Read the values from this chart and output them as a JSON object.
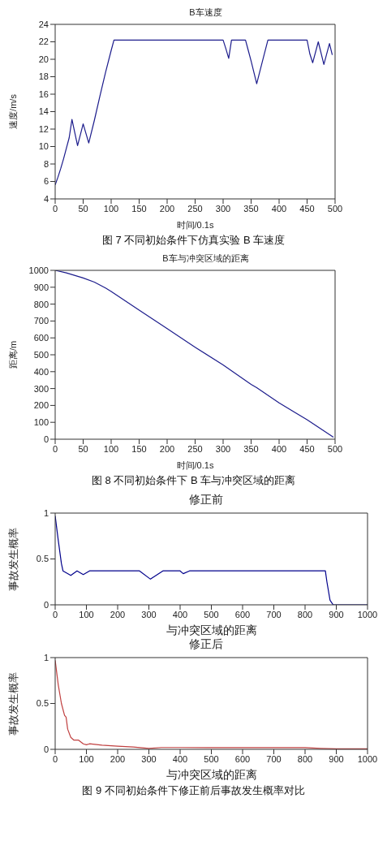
{
  "chart_data": [
    {
      "type": "line",
      "title": "B车速度",
      "xlabel": "时间/0.1s",
      "ylabel": "速度/m/s",
      "x": [
        0,
        5,
        10,
        15,
        20,
        25,
        30,
        40,
        50,
        60,
        70,
        80,
        90,
        100,
        105,
        300,
        305,
        310,
        315,
        340,
        345,
        350,
        360,
        370,
        380,
        450,
        455,
        460,
        470,
        480,
        490,
        495
      ],
      "series": [
        {
          "color": "#1c1c8c",
          "values": [
            5.6,
            6.5,
            7.5,
            8.6,
            9.8,
            11,
            13.1,
            10.1,
            12.6,
            10.4,
            13,
            15.8,
            18.5,
            21,
            22.2,
            22.2,
            21.2,
            20.1,
            22.2,
            22.2,
            21,
            19.8,
            17.2,
            19.7,
            22.2,
            22.2,
            20.6,
            19.6,
            22,
            19.4,
            21.8,
            20.5
          ]
        }
      ],
      "xlim": [
        0,
        500
      ],
      "xticks": [
        0,
        50,
        100,
        150,
        200,
        250,
        300,
        350,
        400,
        450,
        500
      ],
      "ylim": [
        4,
        24
      ],
      "yticks": [
        4,
        6,
        8,
        10,
        12,
        14,
        16,
        18,
        20,
        22,
        24
      ],
      "grid": false,
      "legend": false,
      "marker": "none",
      "line_style": "solid",
      "annotations": [
        "图 7 不同初始条件下仿真实验 B 车速度"
      ]
    },
    {
      "type": "line",
      "title": "B车与冲突区域的距离",
      "xlabel": "时间/0.1s",
      "ylabel": "距离/m",
      "x": [
        0,
        20,
        50,
        70,
        90,
        100,
        150,
        200,
        250,
        300,
        350,
        360,
        400,
        450,
        497
      ],
      "series": [
        {
          "color": "#1c1c8c",
          "values": [
            1000,
            985,
            955,
            930,
            895,
            875,
            765,
            655,
            545,
            440,
            325,
            305,
            215,
            115,
            12
          ]
        }
      ],
      "xlim": [
        0,
        500
      ],
      "xticks": [
        0,
        50,
        100,
        150,
        200,
        250,
        300,
        350,
        400,
        450,
        500
      ],
      "ylim": [
        0,
        1000
      ],
      "yticks": [
        0,
        100,
        200,
        300,
        400,
        500,
        600,
        700,
        800,
        900,
        1000
      ],
      "grid": false,
      "legend": false,
      "marker": "none",
      "line_style": "solid",
      "annotations": [
        "图 8 不同初始条件下 B 车与冲突区域的距离"
      ]
    },
    {
      "type": "line",
      "title": "修正前",
      "xlabel": "与冲突区域的距离",
      "ylabel": "事故发生概率",
      "x": [
        0,
        10,
        20,
        25,
        50,
        70,
        90,
        110,
        270,
        305,
        345,
        400,
        410,
        430,
        865,
        870,
        880,
        890,
        1000
      ],
      "series": [
        {
          "color": "#00008b",
          "values": [
            0.97,
            0.7,
            0.45,
            0.37,
            0.32,
            0.37,
            0.33,
            0.37,
            0.37,
            0.28,
            0.37,
            0.37,
            0.34,
            0.37,
            0.37,
            0.25,
            0.05,
            0,
            0
          ]
        }
      ],
      "xlim": [
        0,
        1000
      ],
      "xticks": [
        0,
        100,
        200,
        300,
        400,
        500,
        600,
        700,
        800,
        900,
        1000
      ],
      "ylim": [
        0,
        1
      ],
      "yticks": [
        0,
        0.5,
        1
      ],
      "grid": false,
      "legend": false,
      "marker": "none",
      "line_style": "solid"
    },
    {
      "type": "line",
      "title": "修正后",
      "xlabel": "与冲突区域的距离",
      "ylabel": "事故发生概率",
      "x": [
        0,
        10,
        20,
        30,
        35,
        40,
        50,
        60,
        75,
        90,
        100,
        110,
        150,
        200,
        250,
        300,
        340,
        400,
        800,
        850,
        900,
        1000
      ],
      "series": [
        {
          "color": "#c04040",
          "values": [
            0.97,
            0.7,
            0.5,
            0.37,
            0.35,
            0.22,
            0.13,
            0.1,
            0.1,
            0.06,
            0.05,
            0.06,
            0.045,
            0.035,
            0.025,
            0.01,
            0.02,
            0.02,
            0.018,
            0.01,
            0.005,
            0.005
          ]
        }
      ],
      "xlim": [
        0,
        1000
      ],
      "xticks": [
        0,
        100,
        200,
        300,
        400,
        500,
        600,
        700,
        800,
        900,
        1000
      ],
      "ylim": [
        0,
        1
      ],
      "yticks": [
        0,
        0.5,
        1
      ],
      "grid": false,
      "legend": false,
      "marker": "none",
      "line_style": "solid",
      "annotations": [
        "图 9 不同初始条件下修正前后事故发生概率对比"
      ]
    }
  ]
}
